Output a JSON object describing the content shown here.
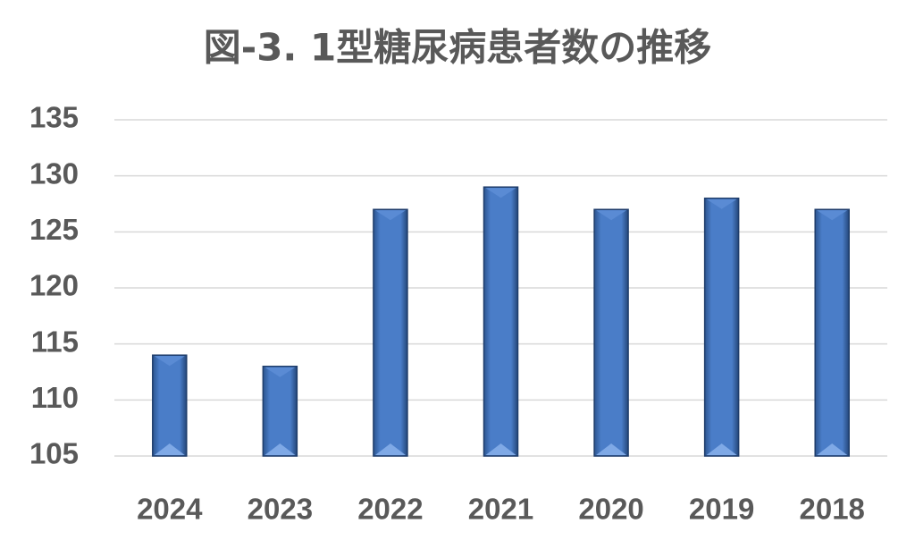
{
  "chart_data": {
    "type": "bar",
    "title": "図-3. 1型糖尿病患者数の推移",
    "categories": [
      "2024",
      "2023",
      "2022",
      "2021",
      "2020",
      "2019",
      "2018"
    ],
    "values": [
      114,
      113,
      127,
      129,
      127,
      128,
      127
    ],
    "color": "#3f6fb8",
    "ylim": [
      105,
      135
    ],
    "yticks": [
      105,
      110,
      115,
      120,
      125,
      130,
      135
    ],
    "grid": true
  }
}
